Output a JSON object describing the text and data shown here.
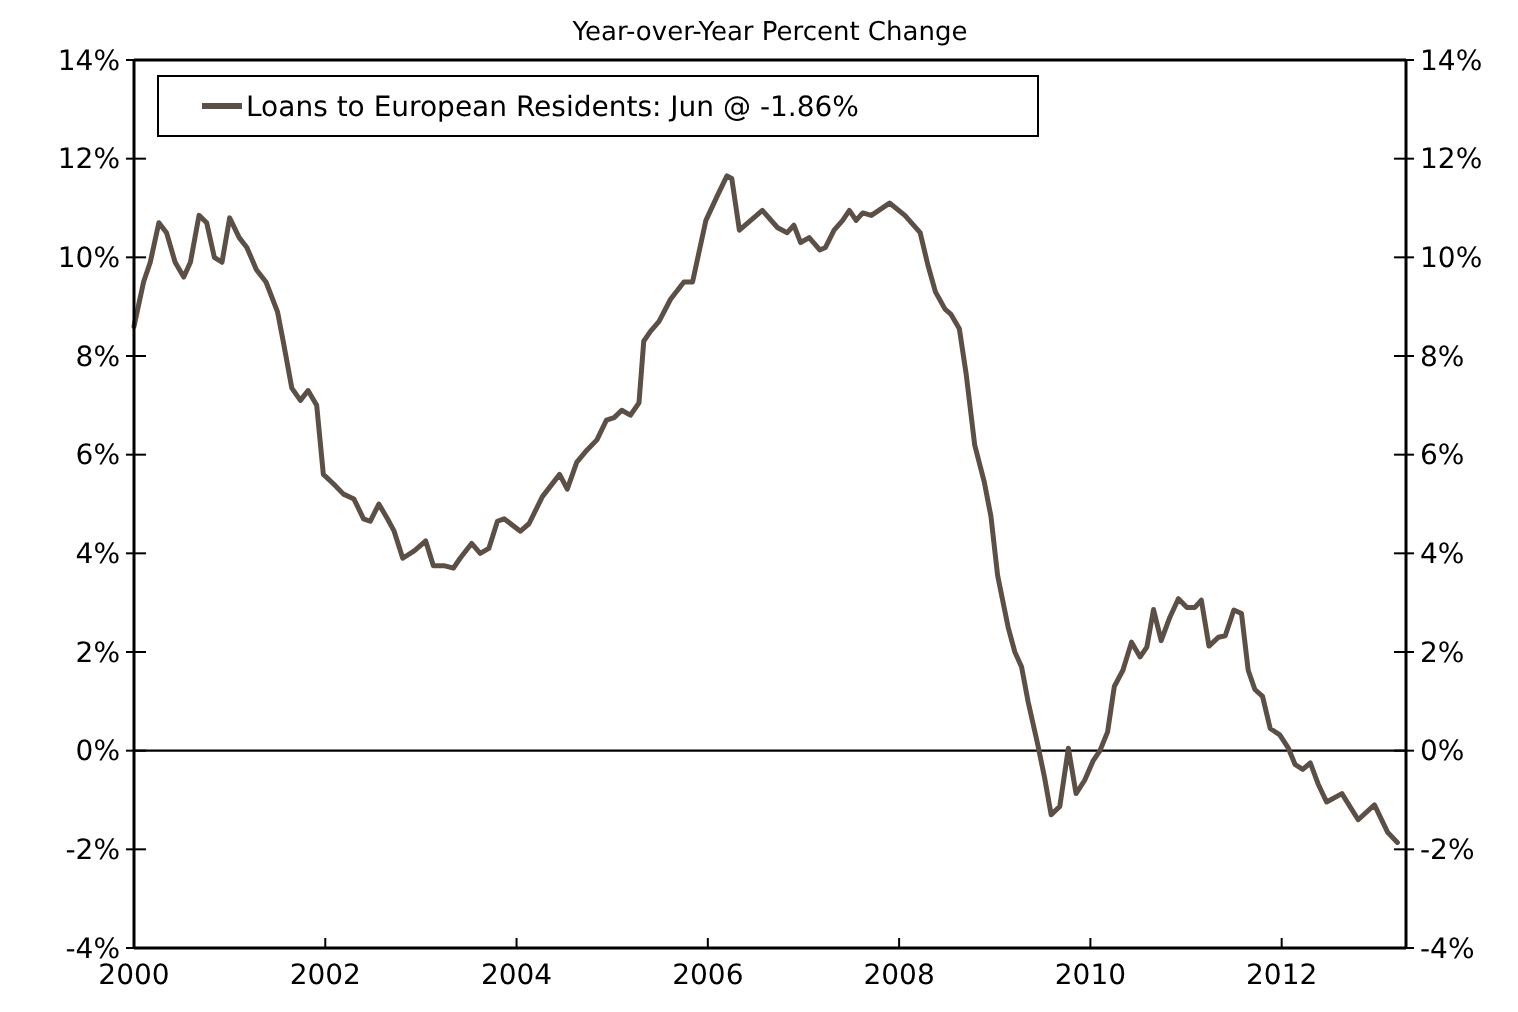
{
  "chart_data": {
    "type": "line",
    "title": "Year-over-Year Percent Change",
    "xlim": [
      2000,
      2013.3
    ],
    "xticks": [
      2000,
      2002,
      2004,
      2006,
      2008,
      2010,
      2012
    ],
    "ylim": [
      -4,
      14
    ],
    "yticks": [
      {
        "value": -4,
        "label": "-4%"
      },
      {
        "value": -2,
        "label": "-2%"
      },
      {
        "value": 0,
        "label": "0%"
      },
      {
        "value": 2,
        "label": "2%"
      },
      {
        "value": 4,
        "label": "4%"
      },
      {
        "value": 6,
        "label": "6%"
      },
      {
        "value": 8,
        "label": "8%"
      },
      {
        "value": 10,
        "label": "10%"
      },
      {
        "value": 12,
        "label": "12%"
      },
      {
        "value": 14,
        "label": "14%"
      }
    ],
    "y2lim": [
      -4,
      14
    ],
    "y2ticks": [
      {
        "value": -4,
        "label": "-4%"
      },
      {
        "value": -2,
        "label": "-2%"
      },
      {
        "value": 0,
        "label": "0%"
      },
      {
        "value": 2,
        "label": "2%"
      },
      {
        "value": 4,
        "label": "4%"
      },
      {
        "value": 6,
        "label": "6%"
      },
      {
        "value": 8,
        "label": "8%"
      },
      {
        "value": 10,
        "label": "10%"
      },
      {
        "value": 12,
        "label": "12%"
      },
      {
        "value": 14,
        "label": "14%"
      }
    ],
    "ref_lines": [
      {
        "axis": "y",
        "value": 0,
        "color": "#000000"
      }
    ],
    "legend": "top left",
    "grid": false,
    "marker": "none",
    "line_style": "solid",
    "series": [
      {
        "name": "Loans to European Residents: Jun @ -1.86%",
        "color": "#5c5046",
        "x": [
          2000.0,
          2000.1,
          2000.17,
          2000.26,
          2000.34,
          2000.43,
          2000.52,
          2000.59,
          2000.68,
          2000.76,
          2000.84,
          2000.92,
          2001.0,
          2001.1,
          2001.18,
          2001.28,
          2001.38,
          2001.5,
          2001.56,
          2001.65,
          2001.74,
          2001.82,
          2001.91,
          2001.98,
          2002.09,
          2002.19,
          2002.3,
          2002.4,
          2002.47,
          2002.56,
          2002.65,
          2002.72,
          2002.81,
          2002.93,
          2003.05,
          2003.13,
          2003.24,
          2003.34,
          2003.41,
          2003.53,
          2003.62,
          2003.71,
          2003.8,
          2003.87,
          2004.04,
          2004.13,
          2004.27,
          2004.45,
          2004.53,
          2004.63,
          2004.74,
          2004.84,
          2004.94,
          2005.02,
          2005.1,
          2005.19,
          2005.28,
          2005.33,
          2005.4,
          2005.49,
          2005.61,
          2005.75,
          2005.84,
          2005.98,
          2006.1,
          2006.2,
          2006.25,
          2006.33,
          2006.57,
          2006.73,
          2006.83,
          2006.9,
          2006.97,
          2007.06,
          2007.17,
          2007.23,
          2007.32,
          2007.41,
          2007.48,
          2007.55,
          2007.62,
          2007.71,
          2007.9,
          2008.06,
          2008.22,
          2008.3,
          2008.38,
          2008.48,
          2008.54,
          2008.63,
          2008.7,
          2008.79,
          2008.89,
          2008.96,
          2009.03,
          2009.14,
          2009.21,
          2009.28,
          2009.35,
          2009.45,
          2009.52,
          2009.59,
          2009.68,
          2009.77,
          2009.85,
          2009.94,
          2010.03,
          2010.1,
          2010.18,
          2010.25,
          2010.34,
          2010.43,
          2010.52,
          2010.59,
          2010.66,
          2010.74,
          2010.83,
          2010.92,
          2011.01,
          2011.09,
          2011.16,
          2011.24,
          2011.34,
          2011.41,
          2011.5,
          2011.58,
          2011.65,
          2011.72,
          2011.8,
          2011.88,
          2011.98,
          2012.07,
          2012.14,
          2012.22,
          2012.3,
          2012.38,
          2012.47,
          2012.63,
          2012.8,
          2012.97,
          2013.11,
          2013.21
        ],
        "values": [
          8.6,
          9.5,
          9.9,
          10.7,
          10.5,
          9.9,
          9.6,
          9.9,
          10.85,
          10.7,
          10.0,
          9.9,
          10.8,
          10.4,
          10.2,
          9.75,
          9.5,
          8.9,
          8.3,
          7.35,
          7.1,
          7.3,
          7.0,
          5.6,
          5.4,
          5.2,
          5.1,
          4.7,
          4.65,
          5.0,
          4.7,
          4.45,
          3.9,
          4.05,
          4.25,
          3.75,
          3.75,
          3.7,
          3.9,
          4.2,
          4.0,
          4.1,
          4.65,
          4.7,
          4.45,
          4.6,
          5.15,
          5.6,
          5.3,
          5.85,
          6.1,
          6.3,
          6.7,
          6.75,
          6.9,
          6.8,
          7.05,
          8.3,
          8.5,
          8.7,
          9.15,
          9.5,
          9.5,
          10.75,
          11.25,
          11.65,
          11.6,
          10.55,
          10.95,
          10.6,
          10.5,
          10.65,
          10.3,
          10.4,
          10.15,
          10.2,
          10.55,
          10.75,
          10.95,
          10.75,
          10.9,
          10.85,
          11.1,
          10.85,
          10.5,
          9.85,
          9.3,
          8.95,
          8.85,
          8.55,
          7.65,
          6.2,
          5.45,
          4.75,
          3.55,
          2.5,
          2.0,
          1.7,
          0.98,
          0.12,
          -0.54,
          -1.3,
          -1.13,
          0.05,
          -0.87,
          -0.6,
          -0.2,
          0.0,
          0.38,
          1.3,
          1.63,
          2.2,
          1.9,
          2.1,
          2.86,
          2.23,
          2.7,
          3.08,
          2.9,
          2.9,
          3.05,
          2.12,
          2.3,
          2.33,
          2.85,
          2.78,
          1.63,
          1.24,
          1.1,
          0.45,
          0.32,
          0.05,
          -0.28,
          -0.38,
          -0.25,
          -0.67,
          -1.04,
          -0.87,
          -1.4,
          -1.1,
          -1.66,
          -1.86
        ]
      }
    ]
  }
}
